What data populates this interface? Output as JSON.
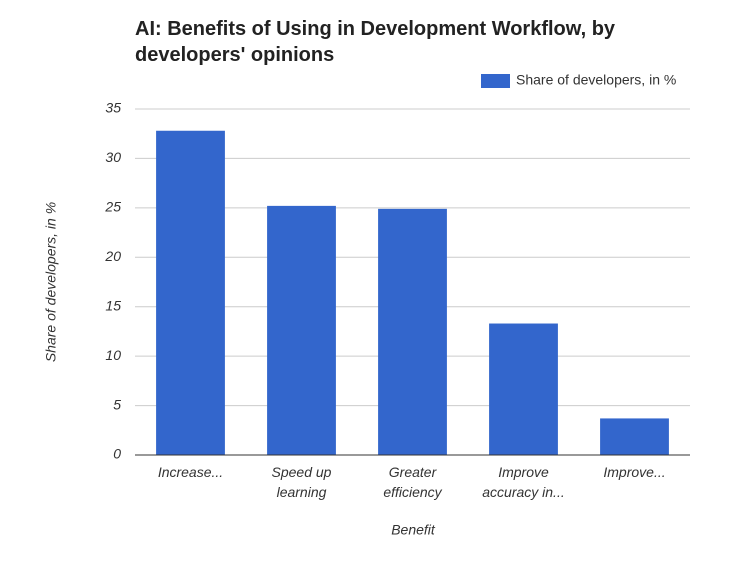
{
  "chart_data": {
    "type": "bar",
    "title": "AI: Benefits of Using in Development Workflow, by developers' opinions",
    "legend_position": "top-right",
    "x_label": "Benefit",
    "y_label": "Share of developers, in %",
    "categories": [
      "Increase...",
      "Speed up learning",
      "Greater efficiency",
      "Improve accuracy in...",
      "Improve..."
    ],
    "series": [
      {
        "name": "Share of developers, in %",
        "color": "#3366cc",
        "values": [
          32.8,
          25.2,
          24.9,
          13.3,
          3.7
        ]
      }
    ],
    "ylim": [
      0,
      35
    ],
    "yticks": [
      0,
      5,
      10,
      15,
      20,
      25,
      30,
      35
    ],
    "grid": true
  }
}
